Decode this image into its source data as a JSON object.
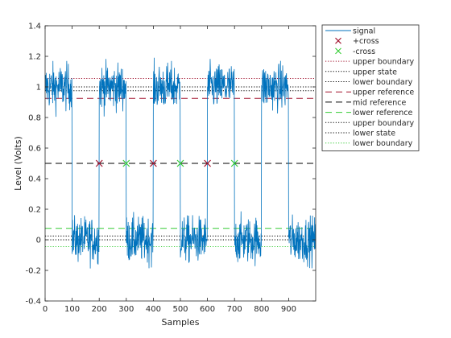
{
  "chart_data": {
    "type": "line",
    "xlabel": "Samples",
    "ylabel": "Level (Volts)",
    "xlim": [
      0,
      1000
    ],
    "ylim": [
      -0.4,
      1.4
    ],
    "xticks": [
      0,
      100,
      200,
      300,
      400,
      500,
      600,
      700,
      800,
      900
    ],
    "yticks": [
      -0.4,
      -0.2,
      0,
      0.2,
      0.4,
      0.6,
      0.8,
      1,
      1.2,
      1.4
    ],
    "xtick_labels": [
      "0",
      "100",
      "200",
      "300",
      "400",
      "500",
      "600",
      "700",
      "800",
      "900"
    ],
    "ytick_labels": [
      "-0.4",
      "-0.2",
      "0",
      "0.2",
      "0.4",
      "0.6",
      "0.8",
      "1",
      "1.2",
      "1.4"
    ],
    "grid": false,
    "legend_position": "outside-top-right",
    "signal": {
      "name": "signal",
      "color": "#0072BD",
      "high_level": 1.0,
      "low_level": 0.0,
      "noise_amplitude": 0.08,
      "high_intervals": [
        [
          0,
          100
        ],
        [
          200,
          300
        ],
        [
          400,
          500
        ],
        [
          600,
          700
        ],
        [
          800,
          900
        ]
      ]
    },
    "crossings": [
      {
        "name": "+cross",
        "color": "#A2142F",
        "marker": "x",
        "x": [
          200,
          400,
          600
        ],
        "y": 0.5
      },
      {
        "name": "-cross",
        "color": "#33CC33",
        "marker": "x",
        "x": [
          300,
          500,
          700
        ],
        "y": 0.5
      }
    ],
    "levels": [
      {
        "name": "upper boundary",
        "color": "#A2142F",
        "style": "dotted",
        "y": 1.055
      },
      {
        "name": "upper state",
        "color": "#000000",
        "style": "dotted",
        "y": 1.0
      },
      {
        "name": "lower boundary",
        "color": "#000000",
        "style": "dotted",
        "y": 0.975
      },
      {
        "name": "upper reference",
        "color": "#A2142F",
        "style": "dashed",
        "y": 0.925
      },
      {
        "name": "mid reference",
        "color": "#000000",
        "style": "dashed",
        "y": 0.5
      },
      {
        "name": "lower reference",
        "color": "#33CC33",
        "style": "dashed",
        "y": 0.075
      },
      {
        "name": "upper boundary",
        "color": "#000000",
        "style": "dotted",
        "y": 0.025
      },
      {
        "name": "lower state",
        "color": "#000000",
        "style": "dotted",
        "y": 0.0
      },
      {
        "name": "lower boundary",
        "color": "#33CC33",
        "style": "dotted",
        "y": -0.045
      }
    ],
    "legend": [
      "signal",
      "+cross",
      "-cross",
      "upper boundary",
      "upper state",
      "lower boundary",
      "upper reference",
      "mid reference",
      "lower reference",
      "upper boundary",
      "lower state",
      "lower boundary"
    ]
  }
}
